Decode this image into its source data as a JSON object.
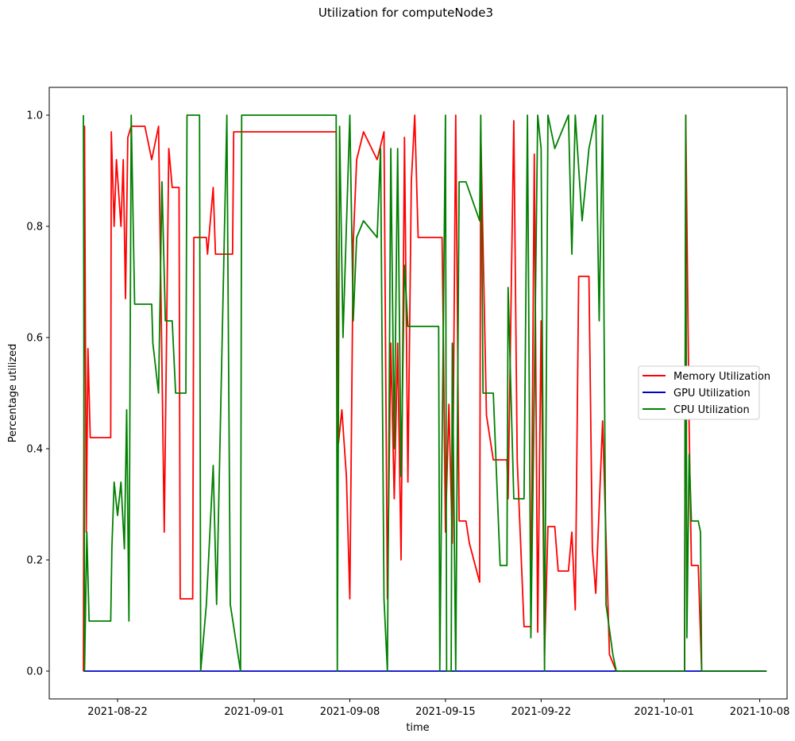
{
  "chart_data": {
    "type": "line",
    "title": "Utilization for computeNode3",
    "xlabel": "time",
    "ylabel": "Percentage utilized",
    "xlim": [
      "2021-08-17",
      "2021-10-10"
    ],
    "ylim": [
      -0.05,
      1.05
    ],
    "x_ticks": [
      "2021-08-22",
      "2021-09-01",
      "2021-09-08",
      "2021-09-15",
      "2021-09-22",
      "2021-10-01",
      "2021-10-08"
    ],
    "y_ticks": [
      "0.0",
      "0.2",
      "0.4",
      "0.6",
      "0.8",
      "1.0"
    ],
    "grid": false,
    "legend": "center-right",
    "series": [
      {
        "name": "Memory Utilization",
        "color": "#ff0000",
        "points": [
          [
            "2021-08-19T12:00",
            0.0
          ],
          [
            "2021-08-19T14:00",
            0.98
          ],
          [
            "2021-08-19T17:00",
            0.25
          ],
          [
            "2021-08-19T20:00",
            0.58
          ],
          [
            "2021-08-20T00:00",
            0.42
          ],
          [
            "2021-08-21T12:00",
            0.42
          ],
          [
            "2021-08-21T13:00",
            0.97
          ],
          [
            "2021-08-21T18:00",
            0.8
          ],
          [
            "2021-08-21T22:00",
            0.92
          ],
          [
            "2021-08-22T06:00",
            0.8
          ],
          [
            "2021-08-22T10:00",
            0.92
          ],
          [
            "2021-08-22T14:00",
            0.67
          ],
          [
            "2021-08-22T18:00",
            0.96
          ],
          [
            "2021-08-23T00:00",
            0.98
          ],
          [
            "2021-08-24T00:00",
            0.98
          ],
          [
            "2021-08-24T12:00",
            0.92
          ],
          [
            "2021-08-25T00:00",
            0.98
          ],
          [
            "2021-08-25T06:00",
            0.55
          ],
          [
            "2021-08-25T10:00",
            0.25
          ],
          [
            "2021-08-25T18:00",
            0.94
          ],
          [
            "2021-08-26T00:00",
            0.87
          ],
          [
            "2021-08-26T12:00",
            0.87
          ],
          [
            "2021-08-26T14:00",
            0.13
          ],
          [
            "2021-08-27T12:00",
            0.13
          ],
          [
            "2021-08-27T14:00",
            0.78
          ],
          [
            "2021-08-28T12:00",
            0.78
          ],
          [
            "2021-08-28T14:00",
            0.75
          ],
          [
            "2021-08-29T00:00",
            0.87
          ],
          [
            "2021-08-29T04:00",
            0.75
          ],
          [
            "2021-08-30T10:00",
            0.75
          ],
          [
            "2021-08-30T12:00",
            0.97
          ],
          [
            "2021-09-07T00:00",
            0.97
          ],
          [
            "2021-09-07T04:00",
            0.41
          ],
          [
            "2021-09-07T10:00",
            0.47
          ],
          [
            "2021-09-07T18:00",
            0.35
          ],
          [
            "2021-09-08T00:00",
            0.13
          ],
          [
            "2021-09-08T06:00",
            0.77
          ],
          [
            "2021-09-08T12:00",
            0.92
          ],
          [
            "2021-09-09T00:00",
            0.97
          ],
          [
            "2021-09-10T00:00",
            0.92
          ],
          [
            "2021-09-10T12:00",
            0.97
          ],
          [
            "2021-09-10T18:00",
            0.13
          ],
          [
            "2021-09-11T00:00",
            0.59
          ],
          [
            "2021-09-11T06:00",
            0.31
          ],
          [
            "2021-09-11T12:00",
            0.59
          ],
          [
            "2021-09-11T18:00",
            0.2
          ],
          [
            "2021-09-12T00:00",
            0.96
          ],
          [
            "2021-09-12T06:00",
            0.34
          ],
          [
            "2021-09-12T12:00",
            0.88
          ],
          [
            "2021-09-12T18:00",
            1.0
          ],
          [
            "2021-09-13T00:00",
            0.78
          ],
          [
            "2021-09-14T18:00",
            0.78
          ],
          [
            "2021-09-14T20:00",
            0.62
          ],
          [
            "2021-09-15T00:00",
            0.25
          ],
          [
            "2021-09-15T06:00",
            0.48
          ],
          [
            "2021-09-15T12:00",
            0.23
          ],
          [
            "2021-09-15T18:00",
            1.0
          ],
          [
            "2021-09-16T00:00",
            0.27
          ],
          [
            "2021-09-16T12:00",
            0.27
          ],
          [
            "2021-09-16T18:00",
            0.23
          ],
          [
            "2021-09-17T12:00",
            0.16
          ],
          [
            "2021-09-17T14:00",
            0.97
          ],
          [
            "2021-09-18T00:00",
            0.46
          ],
          [
            "2021-09-18T12:00",
            0.38
          ],
          [
            "2021-09-19T12:00",
            0.38
          ],
          [
            "2021-09-19T14:00",
            0.31
          ],
          [
            "2021-09-20T00:00",
            0.99
          ],
          [
            "2021-09-20T06:00",
            0.38
          ],
          [
            "2021-09-20T18:00",
            0.08
          ],
          [
            "2021-09-21T06:00",
            0.08
          ],
          [
            "2021-09-21T12:00",
            0.93
          ],
          [
            "2021-09-21T18:00",
            0.07
          ],
          [
            "2021-09-22T00:00",
            0.63
          ],
          [
            "2021-09-22T06:00",
            0.03
          ],
          [
            "2021-09-22T12:00",
            0.26
          ],
          [
            "2021-09-23T00:00",
            0.26
          ],
          [
            "2021-09-23T06:00",
            0.18
          ],
          [
            "2021-09-24T00:00",
            0.18
          ],
          [
            "2021-09-24T06:00",
            0.25
          ],
          [
            "2021-09-24T12:00",
            0.11
          ],
          [
            "2021-09-24T18:00",
            0.71
          ],
          [
            "2021-09-25T12:00",
            0.71
          ],
          [
            "2021-09-25T18:00",
            0.22
          ],
          [
            "2021-09-26T00:00",
            0.14
          ],
          [
            "2021-09-26T12:00",
            0.45
          ],
          [
            "2021-09-27T00:00",
            0.03
          ],
          [
            "2021-09-27T12:00",
            0.0
          ],
          [
            "2021-10-02T12:00",
            0.0
          ],
          [
            "2021-10-02T14:00",
            1.0
          ],
          [
            "2021-10-02T20:00",
            0.44
          ],
          [
            "2021-10-03T00:00",
            0.19
          ],
          [
            "2021-10-03T12:00",
            0.19
          ],
          [
            "2021-10-03T18:00",
            0.0
          ],
          [
            "2021-10-08T12:00",
            0.0
          ]
        ]
      },
      {
        "name": "GPU Utilization",
        "color": "#0000cc",
        "points": [
          [
            "2021-08-19T12:00",
            0.0
          ],
          [
            "2021-10-08T12:00",
            0.0
          ]
        ]
      },
      {
        "name": "CPU Utilization",
        "color": "#008000",
        "points": [
          [
            "2021-08-19T12:00",
            1.0
          ],
          [
            "2021-08-19T14:00",
            0.0
          ],
          [
            "2021-08-19T18:00",
            0.25
          ],
          [
            "2021-08-19T22:00",
            0.09
          ],
          [
            "2021-08-21T12:00",
            0.09
          ],
          [
            "2021-08-21T14:00",
            0.22
          ],
          [
            "2021-08-21T18:00",
            0.34
          ],
          [
            "2021-08-22T00:00",
            0.28
          ],
          [
            "2021-08-22T06:00",
            0.34
          ],
          [
            "2021-08-22T12:00",
            0.22
          ],
          [
            "2021-08-22T16:00",
            0.47
          ],
          [
            "2021-08-22T20:00",
            0.09
          ],
          [
            "2021-08-23T00:00",
            1.0
          ],
          [
            "2021-08-23T06:00",
            0.66
          ],
          [
            "2021-08-24T12:00",
            0.66
          ],
          [
            "2021-08-24T14:00",
            0.59
          ],
          [
            "2021-08-25T00:00",
            0.5
          ],
          [
            "2021-08-25T06:00",
            0.88
          ],
          [
            "2021-08-25T12:00",
            0.63
          ],
          [
            "2021-08-26T00:00",
            0.63
          ],
          [
            "2021-08-26T06:00",
            0.5
          ],
          [
            "2021-08-27T00:00",
            0.5
          ],
          [
            "2021-08-27T02:00",
            1.0
          ],
          [
            "2021-08-28T00:00",
            1.0
          ],
          [
            "2021-08-28T02:00",
            0.0
          ],
          [
            "2021-08-28T12:00",
            0.12
          ],
          [
            "2021-08-29T00:00",
            0.37
          ],
          [
            "2021-08-29T06:00",
            0.12
          ],
          [
            "2021-08-30T00:00",
            1.0
          ],
          [
            "2021-08-30T06:00",
            0.12
          ],
          [
            "2021-08-31T00:00",
            0.0
          ],
          [
            "2021-08-31T02:00",
            1.0
          ],
          [
            "2021-09-07T00:00",
            1.0
          ],
          [
            "2021-09-07T02:00",
            0.0
          ],
          [
            "2021-09-07T06:00",
            0.98
          ],
          [
            "2021-09-07T12:00",
            0.6
          ],
          [
            "2021-09-08T00:00",
            1.0
          ],
          [
            "2021-09-08T06:00",
            0.63
          ],
          [
            "2021-09-08T12:00",
            0.78
          ],
          [
            "2021-09-09T00:00",
            0.81
          ],
          [
            "2021-09-10T00:00",
            0.78
          ],
          [
            "2021-09-10T06:00",
            0.94
          ],
          [
            "2021-09-10T12:00",
            0.13
          ],
          [
            "2021-09-10T18:00",
            0.0
          ],
          [
            "2021-09-11T00:00",
            0.94
          ],
          [
            "2021-09-11T06:00",
            0.4
          ],
          [
            "2021-09-11T12:00",
            0.94
          ],
          [
            "2021-09-11T18:00",
            0.35
          ],
          [
            "2021-09-12T00:00",
            0.73
          ],
          [
            "2021-09-12T06:00",
            0.62
          ],
          [
            "2021-09-14T12:00",
            0.62
          ],
          [
            "2021-09-14T14:00",
            0.0
          ],
          [
            "2021-09-15T00:00",
            1.0
          ],
          [
            "2021-09-15T02:00",
            0.0
          ],
          [
            "2021-09-15T10:00",
            0.0
          ],
          [
            "2021-09-15T12:00",
            0.59
          ],
          [
            "2021-09-15T18:00",
            0.0
          ],
          [
            "2021-09-16T00:00",
            0.88
          ],
          [
            "2021-09-16T12:00",
            0.88
          ],
          [
            "2021-09-17T12:00",
            0.81
          ],
          [
            "2021-09-17T14:00",
            1.0
          ],
          [
            "2021-09-17T18:00",
            0.5
          ],
          [
            "2021-09-18T12:00",
            0.5
          ],
          [
            "2021-09-19T00:00",
            0.19
          ],
          [
            "2021-09-19T12:00",
            0.19
          ],
          [
            "2021-09-19T14:00",
            0.69
          ],
          [
            "2021-09-20T00:00",
            0.31
          ],
          [
            "2021-09-20T18:00",
            0.31
          ],
          [
            "2021-09-21T00:00",
            1.0
          ],
          [
            "2021-09-21T06:00",
            0.06
          ],
          [
            "2021-09-21T12:00",
            0.5
          ],
          [
            "2021-09-21T18:00",
            1.0
          ],
          [
            "2021-09-22T00:00",
            0.94
          ],
          [
            "2021-09-22T06:00",
            0.0
          ],
          [
            "2021-09-22T12:00",
            1.0
          ],
          [
            "2021-09-23T00:00",
            0.94
          ],
          [
            "2021-09-24T00:00",
            1.0
          ],
          [
            "2021-09-24T06:00",
            0.75
          ],
          [
            "2021-09-24T12:00",
            1.0
          ],
          [
            "2021-09-25T00:00",
            0.81
          ],
          [
            "2021-09-25T12:00",
            0.94
          ],
          [
            "2021-09-26T00:00",
            1.0
          ],
          [
            "2021-09-26T06:00",
            0.63
          ],
          [
            "2021-09-26T12:00",
            1.0
          ],
          [
            "2021-09-26T18:00",
            0.12
          ],
          [
            "2021-09-27T06:00",
            0.03
          ],
          [
            "2021-09-27T12:00",
            0.0
          ],
          [
            "2021-10-02T12:00",
            0.0
          ],
          [
            "2021-10-02T14:00",
            1.0
          ],
          [
            "2021-10-02T16:00",
            0.06
          ],
          [
            "2021-10-02T20:00",
            0.39
          ],
          [
            "2021-10-03T00:00",
            0.27
          ],
          [
            "2021-10-03T12:00",
            0.27
          ],
          [
            "2021-10-03T16:00",
            0.25
          ],
          [
            "2021-10-03T18:00",
            0.0
          ],
          [
            "2021-10-08T12:00",
            0.0
          ]
        ]
      }
    ]
  }
}
